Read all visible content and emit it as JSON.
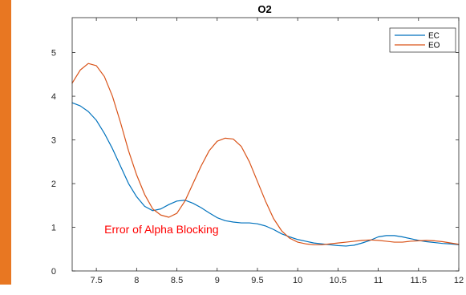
{
  "accent_bar_color": "#e87722",
  "chart_data": {
    "type": "line",
    "title": "O2",
    "xlabel": "",
    "ylabel": "",
    "xlim": [
      7.2,
      12
    ],
    "ylim": [
      0,
      5.8
    ],
    "xticks": [
      7.5,
      8,
      8.5,
      9,
      9.5,
      10,
      10.5,
      11,
      11.5,
      12
    ],
    "xtick_labels": [
      "7.5",
      "8",
      "8.5",
      "9",
      "9.5",
      "10",
      "10.5",
      "11",
      "11.5",
      "12"
    ],
    "yticks": [
      0,
      1,
      2,
      3,
      4,
      5
    ],
    "ytick_labels": [
      "0",
      "1",
      "2",
      "3",
      "4",
      "5"
    ],
    "grid": false,
    "legend_position": "top-right",
    "series": [
      {
        "name": "EC",
        "color": "#0072bd",
        "x": [
          7.2,
          7.3,
          7.4,
          7.5,
          7.6,
          7.7,
          7.8,
          7.9,
          8.0,
          8.1,
          8.2,
          8.3,
          8.4,
          8.5,
          8.6,
          8.7,
          8.8,
          8.9,
          9.0,
          9.1,
          9.2,
          9.3,
          9.4,
          9.5,
          9.6,
          9.7,
          9.8,
          9.9,
          10.0,
          10.1,
          10.2,
          10.3,
          10.4,
          10.5,
          10.6,
          10.7,
          10.8,
          10.9,
          11.0,
          11.1,
          11.2,
          11.3,
          11.4,
          11.5,
          11.6,
          11.7,
          11.8,
          11.9,
          12.0
        ],
        "y": [
          3.85,
          3.78,
          3.65,
          3.45,
          3.15,
          2.8,
          2.4,
          2.0,
          1.7,
          1.48,
          1.38,
          1.42,
          1.52,
          1.6,
          1.62,
          1.55,
          1.45,
          1.33,
          1.22,
          1.15,
          1.12,
          1.1,
          1.1,
          1.08,
          1.03,
          0.95,
          0.85,
          0.78,
          0.72,
          0.68,
          0.64,
          0.62,
          0.6,
          0.58,
          0.57,
          0.59,
          0.64,
          0.7,
          0.78,
          0.81,
          0.81,
          0.78,
          0.74,
          0.7,
          0.67,
          0.65,
          0.63,
          0.62,
          0.6
        ]
      },
      {
        "name": "EO",
        "color": "#d95319",
        "x": [
          7.2,
          7.3,
          7.4,
          7.5,
          7.6,
          7.7,
          7.8,
          7.9,
          8.0,
          8.1,
          8.2,
          8.3,
          8.4,
          8.5,
          8.6,
          8.7,
          8.8,
          8.9,
          9.0,
          9.1,
          9.2,
          9.3,
          9.4,
          9.5,
          9.6,
          9.7,
          9.8,
          9.9,
          10.0,
          10.1,
          10.2,
          10.3,
          10.4,
          10.5,
          10.6,
          10.7,
          10.8,
          10.9,
          11.0,
          11.1,
          11.2,
          11.3,
          11.4,
          11.5,
          11.6,
          11.7,
          11.8,
          11.9,
          12.0
        ],
        "y": [
          4.3,
          4.6,
          4.75,
          4.7,
          4.45,
          4.0,
          3.4,
          2.75,
          2.2,
          1.75,
          1.42,
          1.28,
          1.23,
          1.32,
          1.6,
          2.0,
          2.4,
          2.75,
          2.97,
          3.04,
          3.02,
          2.85,
          2.5,
          2.05,
          1.6,
          1.2,
          0.92,
          0.75,
          0.66,
          0.62,
          0.6,
          0.6,
          0.62,
          0.64,
          0.66,
          0.68,
          0.7,
          0.71,
          0.7,
          0.68,
          0.66,
          0.66,
          0.68,
          0.69,
          0.7,
          0.69,
          0.67,
          0.64,
          0.61
        ]
      }
    ],
    "annotation": {
      "text": "Error of Alpha Blocking",
      "color": "#ff0000",
      "x": 7.6,
      "y": 0.95
    }
  }
}
